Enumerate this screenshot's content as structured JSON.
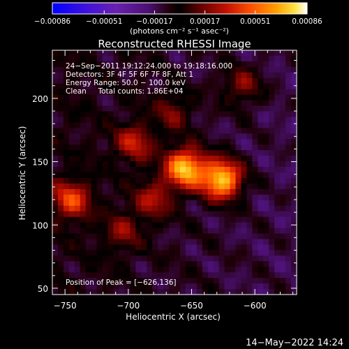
{
  "chart_data": {
    "type": "heatmap",
    "title": "Reconstructed RHESSI Image",
    "xlabel": "Heliocentric X (arcsec)",
    "ylabel": "Heliocentric Y (arcsec)",
    "xlim": [
      -760,
      -567
    ],
    "ylim": [
      45,
      238
    ],
    "x_ticks": [
      -750,
      -700,
      -650,
      -600
    ],
    "x_tick_labels": [
      "−750",
      "−700",
      "−650",
      "−600"
    ],
    "y_ticks": [
      50,
      100,
      150,
      200
    ],
    "y_tick_labels": [
      "50",
      "100",
      "150",
      "200"
    ],
    "colorbar": {
      "min": -0.00086,
      "max": 0.00086,
      "ticks": [
        -0.00086,
        -0.00051,
        -0.00017,
        0.00017,
        0.00051,
        0.00086
      ],
      "tick_labels": [
        "−0.00086",
        "−0.00051",
        "−0.00017",
        "0.00017",
        "0.00051",
        "0.00086"
      ],
      "unit_label": "(photons cm⁻² s⁻¹ asec⁻²)"
    },
    "annotations": [
      "24−Sep−2011 19:12:24.000 to 19:18:16.000",
      "Detectors: 3F 4F 5F 6F 7F 8F, Att 1",
      "Energy Range: 50.0 − 100.0 keV",
      "Clean     Total counts: 1.86E+04"
    ],
    "peak_label": "Position of Peak = [−626,136]",
    "peak": {
      "x": -626,
      "y": 136
    },
    "sources": [
      {
        "x": -626,
        "y": 136,
        "amp": 1.0
      },
      {
        "x": -655,
        "y": 145,
        "amp": 0.95
      },
      {
        "x": -695,
        "y": 165,
        "amp": 0.45
      },
      {
        "x": -680,
        "y": 120,
        "amp": 0.4
      },
      {
        "x": -745,
        "y": 120,
        "amp": 0.55
      },
      {
        "x": -610,
        "y": 210,
        "amp": 0.35
      },
      {
        "x": -665,
        "y": 190,
        "amp": 0.3
      },
      {
        "x": -705,
        "y": 95,
        "amp": 0.3
      }
    ]
  },
  "footer_date": "14−May−2022 14:24"
}
